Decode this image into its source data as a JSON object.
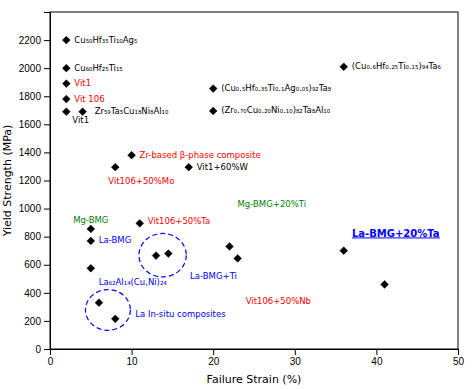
{
  "chart_data": {
    "type": "scatter",
    "xlabel": "Failure Strain (%)",
    "ylabel": "Yield Strength (MPa)",
    "xlim": [
      0,
      50
    ],
    "ylim": [
      0,
      2400
    ],
    "xticks": [
      0,
      10,
      20,
      30,
      40,
      50
    ],
    "yticks": [
      0,
      200,
      400,
      600,
      800,
      1000,
      1200,
      1400,
      1600,
      1800,
      2000,
      2200
    ],
    "grid": false,
    "color": "black",
    "marker": "diamond",
    "x": [
      2,
      2,
      2,
      2,
      2,
      4,
      10,
      8,
      17,
      36,
      20,
      20,
      5,
      5,
      11,
      13,
      14.5,
      22,
      23,
      36,
      41,
      5,
      6,
      8
    ],
    "y": [
      2200,
      2000,
      1890,
      1780,
      1690,
      1690,
      1380,
      1295,
      1295,
      2010,
      1855,
      1695,
      855,
      770,
      895,
      665,
      680,
      730,
      645,
      700,
      460,
      575,
      330,
      215
    ],
    "annotations": [
      {
        "text": "Cu₅₀Hf₃₅Ti₁₀Ag₅",
        "x": 2,
        "y": 2200,
        "color": "black"
      },
      {
        "text": "Cu₆₀Hf₂₅Ti₁₅",
        "x": 2,
        "y": 2000,
        "color": "black"
      },
      {
        "text": "Vit1",
        "x": 2,
        "y": 1890,
        "color": "red"
      },
      {
        "text": "Vit 106",
        "x": 2,
        "y": 1780,
        "color": "red"
      },
      {
        "text": "Vit1",
        "x": 2,
        "y": 1690,
        "color": "black"
      },
      {
        "text": "Zr₅₉Ta₅Cu₁₈Ni₈Al₁₀",
        "x": 4,
        "y": 1690,
        "color": "black"
      },
      {
        "text": "Zr-based β-phase composite",
        "x": 10,
        "y": 1380,
        "color": "red"
      },
      {
        "text": "Vit106+50%Mo",
        "x": 8,
        "y": 1295,
        "color": "red"
      },
      {
        "text": "Vit1+60%W",
        "x": 17,
        "y": 1295,
        "color": "black"
      },
      {
        "text": "(Cu₀.₆Hf₀.₂₅Ti₀.₁₅)₉₄Ta₆",
        "x": 36,
        "y": 2010,
        "color": "black"
      },
      {
        "text": "(Cu₀.₅Hf₀.₃₅Ti₀.₁Ag₀.₀₅)₉₂Ta₈",
        "x": 20,
        "y": 1855,
        "color": "black"
      },
      {
        "text": "(Zr₀.₇₀Cu₀.₂₀Ni₀.₁₀)₈₂Ta₈Al₁₀",
        "x": 20,
        "y": 1695,
        "color": "black"
      },
      {
        "text": "Mg-BMG",
        "x": 5,
        "y": 855,
        "color": "green"
      },
      {
        "text": "La-BMG",
        "x": 5,
        "y": 770,
        "color": "blue"
      },
      {
        "text": "Vit106+50%Ta",
        "x": 11,
        "y": 895,
        "color": "red"
      },
      {
        "text": "La-BMG+Ti",
        "x": 13,
        "y": 665,
        "color": "blue"
      },
      {
        "text": "Mg-BMG+20%Ti",
        "x": 22,
        "y": 730,
        "color": "green"
      },
      {
        "text": "Vit106+50%Nb",
        "x": 23,
        "y": 645,
        "color": "red"
      },
      {
        "text": "La₆₂Al₁₄(Cu,Ni)₂₄",
        "x": 5,
        "y": 575,
        "color": "blue"
      },
      {
        "text": "La In-situ composites",
        "x": 8,
        "y": 215,
        "color": "blue"
      },
      {
        "text": "La-BMG+20%Ta",
        "x": 37.0,
        "y": 800,
        "color": "blue"
      }
    ],
    "ellipses": [
      {
        "cx": 13.8,
        "cy": 668,
        "width": 5.8,
        "height": 310,
        "color": "blue",
        "line_style": "dashed"
      },
      {
        "cx": 7.1,
        "cy": 278,
        "width": 5.5,
        "height": 290,
        "color": "blue",
        "line_style": "dashed"
      }
    ],
    "underline": {
      "x1": 37.0,
      "x2": 47.8,
      "y": 791,
      "color": "blue"
    }
  }
}
